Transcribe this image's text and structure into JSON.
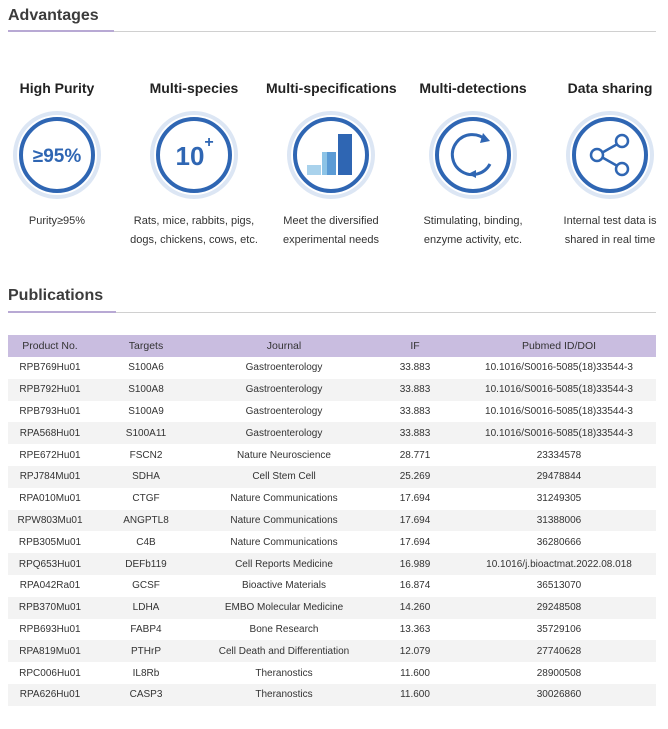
{
  "advantages": {
    "title": "Advantages",
    "items": [
      {
        "title": "High Purity",
        "badge": "≥95%",
        "desc": [
          "Purity≥95%"
        ],
        "icon": "purity-badge-icon"
      },
      {
        "title": "Multi-species",
        "badge": "10",
        "badge_sup": "+",
        "desc": [
          "Rats, mice, rabbits, pigs,",
          "dogs, chickens, cows, etc."
        ],
        "icon": "species-badge-icon"
      },
      {
        "title": "Multi-specifications",
        "desc": [
          "Meet the diversified",
          "experimental needs"
        ],
        "icon": "bar-chart-icon"
      },
      {
        "title": "Multi-detections",
        "desc": [
          "Stimulating, binding,",
          "enzyme activity, etc."
        ],
        "icon": "cycle-arrows-icon"
      },
      {
        "title": "Data sharing",
        "desc": [
          "Internal test data is",
          "shared in real time"
        ],
        "icon": "share-icon"
      }
    ]
  },
  "publications": {
    "title": "Publications",
    "columns": [
      "Product No.",
      "Targets",
      "Journal",
      "IF",
      "Pubmed ID/DOI"
    ],
    "rows": [
      [
        "RPB769Hu01",
        "S100A6",
        "Gastroenterology",
        "33.883",
        "10.1016/S0016-5085(18)33544-3"
      ],
      [
        "RPB792Hu01",
        "S100A8",
        "Gastroenterology",
        "33.883",
        "10.1016/S0016-5085(18)33544-3"
      ],
      [
        "RPB793Hu01",
        "S100A9",
        "Gastroenterology",
        "33.883",
        "10.1016/S0016-5085(18)33544-3"
      ],
      [
        "RPA568Hu01",
        "S100A11",
        "Gastroenterology",
        "33.883",
        "10.1016/S0016-5085(18)33544-3"
      ],
      [
        "RPE672Hu01",
        "FSCN2",
        "Nature Neuroscience",
        "28.771",
        "23334578"
      ],
      [
        "RPJ784Mu01",
        "SDHA",
        "Cell Stem Cell",
        "25.269",
        "29478844"
      ],
      [
        "RPA010Mu01",
        "CTGF",
        "Nature Communications",
        "17.694",
        "31249305"
      ],
      [
        "RPW803Mu01",
        "ANGPTL8",
        "Nature Communications",
        "17.694",
        "31388006"
      ],
      [
        "RPB305Mu01",
        "C4B",
        "Nature Communications",
        "17.694",
        "36280666"
      ],
      [
        "RPQ653Hu01",
        "DEFb119",
        "Cell Reports Medicine",
        "16.989",
        "10.1016/j.bioactmat.2022.08.018"
      ],
      [
        "RPA042Ra01",
        "GCSF",
        "Bioactive Materials",
        "16.874",
        "36513070"
      ],
      [
        "RPB370Mu01",
        "LDHA",
        "EMBO Molecular Medicine",
        "14.260",
        "29248508"
      ],
      [
        "RPB693Hu01",
        "FABP4",
        "Bone Research",
        "13.363",
        "35729106"
      ],
      [
        "RPA819Mu01",
        "PTHrP",
        "Cell Death and Differentiation",
        "12.079",
        "27740628"
      ],
      [
        "RPC006Hu01",
        "IL8Rb",
        "Theranostics",
        "11.600",
        "28900508"
      ],
      [
        "RPA626Hu01",
        "CASP3",
        "Theranostics",
        "11.600",
        "30026860"
      ]
    ]
  },
  "colors": {
    "accent": "#b8a9d4",
    "header_bg": "#c9bde0",
    "circle_blue": "#2f66b3",
    "circle_ring": "#dce6f4"
  }
}
